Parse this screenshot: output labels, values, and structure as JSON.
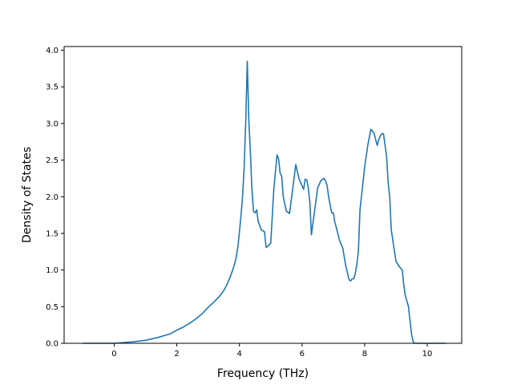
{
  "chart_data": {
    "type": "line",
    "title": "",
    "xlabel": "Frequency (THz)",
    "ylabel": "Density of States",
    "xlim": [
      -1.6,
      11.1
    ],
    "ylim": [
      0,
      4.05
    ],
    "xticks": [
      0,
      2,
      4,
      6,
      8,
      10
    ],
    "yticks": [
      0.0,
      0.5,
      1.0,
      1.5,
      2.0,
      2.5,
      3.0,
      3.5,
      4.0
    ],
    "xtick_labels": [
      "0",
      "2",
      "4",
      "6",
      "8",
      "10"
    ],
    "ytick_labels": [
      "0.0",
      "0.5",
      "1.0",
      "1.5",
      "2.0",
      "2.5",
      "3.0",
      "3.5",
      "4.0"
    ],
    "grid": false,
    "line_color": "#1f77b4",
    "series": [
      {
        "x": [
          -1.0,
          -0.5,
          0.0,
          0.3,
          0.6,
          1.0,
          1.4,
          1.8,
          2.0,
          2.2,
          2.4,
          2.6,
          2.8,
          3.0,
          3.2,
          3.4,
          3.5,
          3.6,
          3.7,
          3.8,
          3.85,
          3.9,
          3.95,
          4.0,
          4.05,
          4.1,
          4.15,
          4.2,
          4.25,
          4.3,
          4.35,
          4.4,
          4.45,
          4.5,
          4.55,
          4.6,
          4.7,
          4.8,
          4.85,
          4.9,
          5.0,
          5.1,
          5.2,
          5.25,
          5.3,
          5.35,
          5.4,
          5.5,
          5.55,
          5.6,
          5.7,
          5.8,
          5.9,
          6.0,
          6.05,
          6.1,
          6.15,
          6.2,
          6.25,
          6.3,
          6.4,
          6.5,
          6.6,
          6.7,
          6.75,
          6.8,
          6.85,
          6.9,
          6.95,
          7.0,
          7.05,
          7.1,
          7.2,
          7.3,
          7.4,
          7.5,
          7.55,
          7.6,
          7.65,
          7.7,
          7.75,
          7.8,
          7.85,
          8.0,
          8.1,
          8.2,
          8.3,
          8.4,
          8.45,
          8.5,
          8.55,
          8.6,
          8.7,
          8.75,
          8.8,
          8.85,
          9.0,
          9.1,
          9.2,
          9.25,
          9.3,
          9.4,
          9.45,
          9.5,
          9.55,
          9.6,
          9.65,
          9.7,
          9.8,
          10.0,
          10.6
        ],
        "y": [
          0.0,
          0.0,
          0.0,
          0.01,
          0.02,
          0.04,
          0.08,
          0.13,
          0.18,
          0.22,
          0.27,
          0.33,
          0.4,
          0.49,
          0.57,
          0.66,
          0.72,
          0.8,
          0.9,
          1.02,
          1.09,
          1.18,
          1.32,
          1.52,
          1.75,
          2.0,
          2.4,
          3.0,
          3.85,
          3.05,
          2.6,
          2.1,
          1.8,
          1.78,
          1.82,
          1.66,
          1.55,
          1.52,
          1.31,
          1.32,
          1.37,
          2.12,
          2.57,
          2.52,
          2.32,
          2.28,
          2.0,
          1.8,
          1.79,
          1.77,
          2.1,
          2.44,
          2.25,
          2.15,
          2.1,
          2.24,
          2.23,
          2.12,
          1.92,
          1.48,
          1.8,
          2.12,
          2.22,
          2.25,
          2.22,
          2.15,
          2.0,
          1.88,
          1.78,
          1.78,
          1.65,
          1.57,
          1.4,
          1.3,
          1.05,
          0.87,
          0.85,
          0.88,
          0.88,
          0.95,
          1.08,
          1.25,
          1.82,
          2.4,
          2.7,
          2.92,
          2.87,
          2.7,
          2.78,
          2.83,
          2.86,
          2.86,
          2.55,
          2.2,
          2.0,
          1.55,
          1.12,
          1.05,
          1.0,
          0.8,
          0.65,
          0.5,
          0.3,
          0.12,
          0.02,
          0.0,
          0.0,
          0.0,
          0.0,
          0.0,
          0.0
        ]
      }
    ]
  }
}
